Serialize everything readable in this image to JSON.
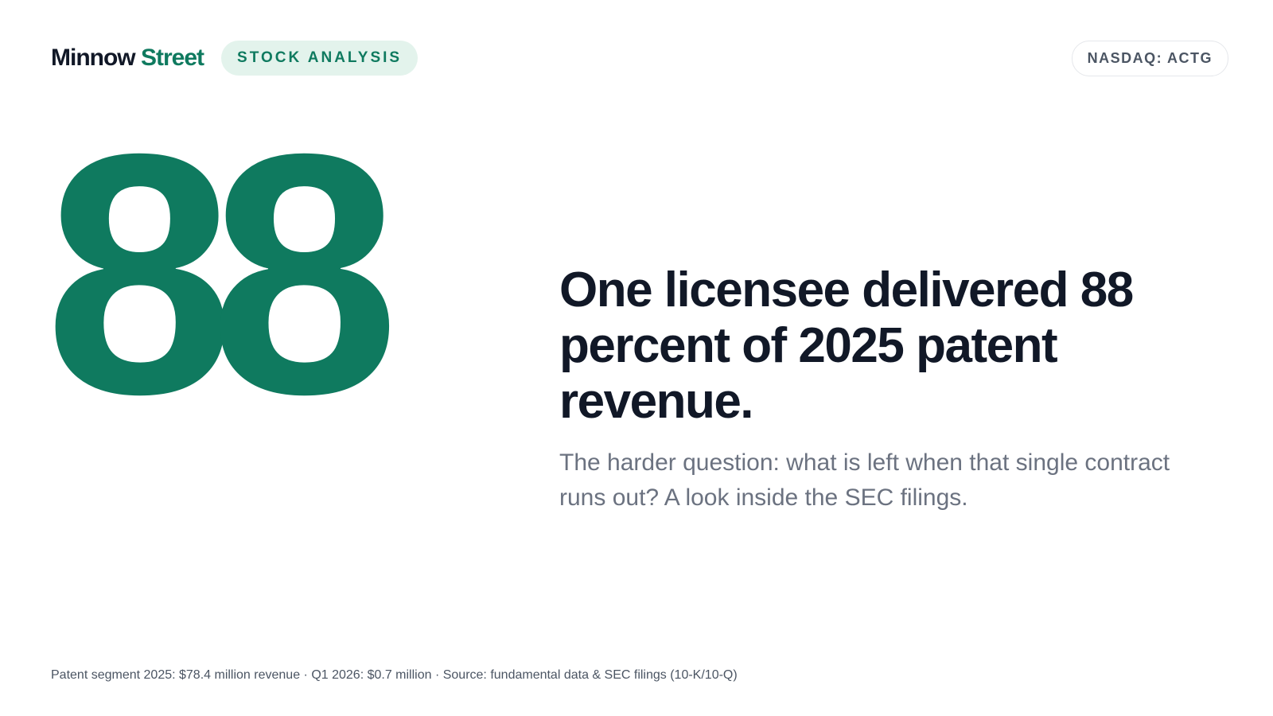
{
  "header": {
    "brand": {
      "first": "Minnow",
      "second": "Street"
    },
    "tag": "STOCK ANALYSIS",
    "ticker": "NASDAQ: ACTG"
  },
  "hero": {
    "number": "88",
    "headline": "One licensee delivered 88 percent of 2025 patent revenue.",
    "subtitle": "The harder question: what is left when that single contract runs out? A look inside the SEC filings."
  },
  "footer": {
    "note": "Patent segment 2025: $78.4 million revenue · Q1 2026: $0.7 million · Source: fundamental data & SEC filings (10-K/10-Q)"
  }
}
